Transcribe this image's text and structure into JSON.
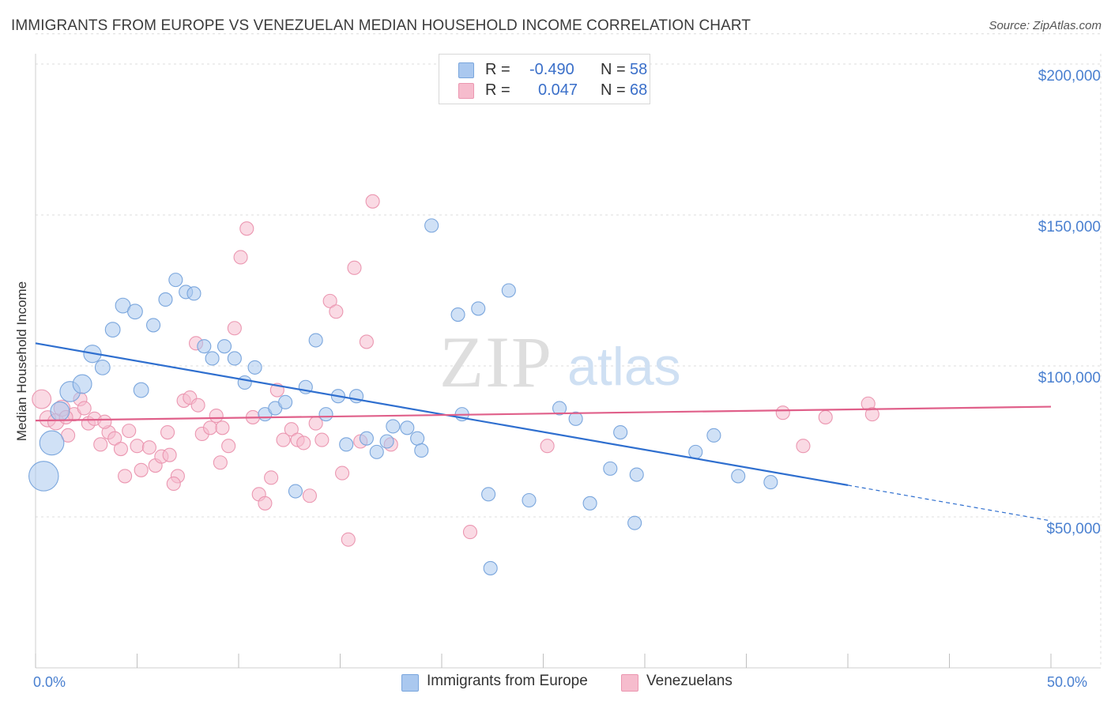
{
  "header": {
    "title": "IMMIGRANTS FROM EUROPE VS VENEZUELAN MEDIAN HOUSEHOLD INCOME CORRELATION CHART",
    "source": "Source: ZipAtlas.com"
  },
  "legend_top": {
    "rows": [
      {
        "r_label": "R =",
        "r_value": "-0.490",
        "n_label": "N =",
        "n_value": "58"
      },
      {
        "r_label": "R =",
        "r_value": "0.047",
        "n_label": "N =",
        "n_value": "68"
      }
    ]
  },
  "legend_bottom": {
    "items": [
      {
        "label": "Immigrants from Europe"
      },
      {
        "label": "Venezuelans"
      }
    ]
  },
  "watermark": {
    "zip": "ZIP",
    "atlas": "atlas"
  },
  "colors": {
    "blue_fill": "#aac8ef",
    "blue_stroke": "#7aa6dd",
    "blue_line": "#2f6fcf",
    "pink_fill": "#f6bccd",
    "pink_stroke": "#eb97b1",
    "pink_line": "#e0608a",
    "grid": "#dcdcdc",
    "axis_text": "#4a80d0"
  },
  "chart_data": {
    "type": "scatter",
    "title": "IMMIGRANTS FROM EUROPE VS VENEZUELAN MEDIAN HOUSEHOLD INCOME CORRELATION CHART",
    "xlabel": "",
    "ylabel": "Median Household Income",
    "xlim": [
      0,
      50
    ],
    "ylim": [
      0,
      210000
    ],
    "x_tick_labels": [
      "0.0%",
      "50.0%"
    ],
    "y_ticks": [
      50000,
      100000,
      150000,
      200000
    ],
    "y_tick_labels": [
      "$50,000",
      "$100,000",
      "$150,000",
      "$200,000"
    ],
    "grid": true,
    "legend_placement": "top-center",
    "series": [
      {
        "name": "Immigrants from Europe",
        "R": -0.49,
        "N": 58,
        "trend": {
          "x0": 0,
          "y0": 107500,
          "x1": 40,
          "y1": 60500,
          "dashed_to_x": 50,
          "dashed_to_y": 48700
        },
        "points": [
          {
            "x": 0.4,
            "y": 63500,
            "s": 2.2
          },
          {
            "x": 0.8,
            "y": 74500,
            "s": 1.8
          },
          {
            "x": 1.2,
            "y": 85000,
            "s": 1.4
          },
          {
            "x": 1.7,
            "y": 91500,
            "s": 1.5
          },
          {
            "x": 2.3,
            "y": 94000,
            "s": 1.4
          },
          {
            "x": 2.8,
            "y": 104000,
            "s": 1.3
          },
          {
            "x": 3.3,
            "y": 99500,
            "s": 1.1
          },
          {
            "x": 3.8,
            "y": 112000,
            "s": 1.1
          },
          {
            "x": 4.3,
            "y": 120000,
            "s": 1.1
          },
          {
            "x": 4.9,
            "y": 118000,
            "s": 1.1
          },
          {
            "x": 5.2,
            "y": 92000,
            "s": 1.1
          },
          {
            "x": 5.8,
            "y": 113500,
            "s": 1.0
          },
          {
            "x": 6.4,
            "y": 122000,
            "s": 1.0
          },
          {
            "x": 6.9,
            "y": 128500,
            "s": 1.0
          },
          {
            "x": 7.4,
            "y": 124500,
            "s": 1.0
          },
          {
            "x": 7.8,
            "y": 124000,
            "s": 1.0
          },
          {
            "x": 8.3,
            "y": 106500,
            "s": 1.0
          },
          {
            "x": 8.7,
            "y": 102500,
            "s": 1.0
          },
          {
            "x": 9.3,
            "y": 106500,
            "s": 1.0
          },
          {
            "x": 9.8,
            "y": 102500,
            "s": 1.0
          },
          {
            "x": 10.3,
            "y": 94500,
            "s": 1.0
          },
          {
            "x": 10.8,
            "y": 99500,
            "s": 1.0
          },
          {
            "x": 11.3,
            "y": 84000,
            "s": 1.0
          },
          {
            "x": 11.8,
            "y": 86000,
            "s": 1.0
          },
          {
            "x": 12.3,
            "y": 88000,
            "s": 1.0
          },
          {
            "x": 12.8,
            "y": 58500,
            "s": 1.0
          },
          {
            "x": 13.3,
            "y": 93000,
            "s": 1.0
          },
          {
            "x": 13.8,
            "y": 108500,
            "s": 1.0
          },
          {
            "x": 14.3,
            "y": 84000,
            "s": 1.0
          },
          {
            "x": 14.9,
            "y": 90000,
            "s": 1.0
          },
          {
            "x": 15.3,
            "y": 74000,
            "s": 1.0
          },
          {
            "x": 15.8,
            "y": 90000,
            "s": 1.0
          },
          {
            "x": 16.3,
            "y": 76000,
            "s": 1.0
          },
          {
            "x": 16.8,
            "y": 71500,
            "s": 1.0
          },
          {
            "x": 17.3,
            "y": 75000,
            "s": 1.0
          },
          {
            "x": 17.6,
            "y": 80000,
            "s": 1.0
          },
          {
            "x": 18.3,
            "y": 79500,
            "s": 1.0
          },
          {
            "x": 18.8,
            "y": 76000,
            "s": 1.0
          },
          {
            "x": 19.5,
            "y": 146500,
            "s": 1.0
          },
          {
            "x": 19.0,
            "y": 72000,
            "s": 1.0
          },
          {
            "x": 20.8,
            "y": 117000,
            "s": 1.0
          },
          {
            "x": 21.0,
            "y": 84000,
            "s": 1.0
          },
          {
            "x": 21.8,
            "y": 119000,
            "s": 1.0
          },
          {
            "x": 22.3,
            "y": 57500,
            "s": 1.0
          },
          {
            "x": 22.4,
            "y": 33000,
            "s": 1.0
          },
          {
            "x": 23.3,
            "y": 125000,
            "s": 1.0
          },
          {
            "x": 24.3,
            "y": 55500,
            "s": 1.0
          },
          {
            "x": 25.8,
            "y": 86000,
            "s": 1.0
          },
          {
            "x": 26.6,
            "y": 82500,
            "s": 1.0
          },
          {
            "x": 27.3,
            "y": 54500,
            "s": 1.0
          },
          {
            "x": 28.3,
            "y": 66000,
            "s": 1.0
          },
          {
            "x": 28.8,
            "y": 78000,
            "s": 1.0
          },
          {
            "x": 29.6,
            "y": 64000,
            "s": 1.0
          },
          {
            "x": 29.5,
            "y": 48000,
            "s": 1.0
          },
          {
            "x": 32.5,
            "y": 71500,
            "s": 1.0
          },
          {
            "x": 33.4,
            "y": 77000,
            "s": 1.0
          },
          {
            "x": 34.6,
            "y": 63500,
            "s": 1.0
          },
          {
            "x": 36.2,
            "y": 61500,
            "s": 1.0
          }
        ]
      },
      {
        "name": "Venezuelans",
        "R": 0.047,
        "N": 68,
        "trend": {
          "x0": 0,
          "y0": 81900,
          "x1": 50,
          "y1": 86500
        },
        "points": [
          {
            "x": 0.3,
            "y": 89000,
            "s": 1.4
          },
          {
            "x": 0.6,
            "y": 82500,
            "s": 1.2
          },
          {
            "x": 1.0,
            "y": 81500,
            "s": 1.2
          },
          {
            "x": 1.3,
            "y": 86000,
            "s": 1.2
          },
          {
            "x": 1.6,
            "y": 77000,
            "s": 1.0
          },
          {
            "x": 1.9,
            "y": 84000,
            "s": 1.0
          },
          {
            "x": 2.2,
            "y": 89000,
            "s": 1.0
          },
          {
            "x": 2.6,
            "y": 81000,
            "s": 1.0
          },
          {
            "x": 2.9,
            "y": 82500,
            "s": 1.0
          },
          {
            "x": 3.2,
            "y": 74000,
            "s": 1.0
          },
          {
            "x": 3.6,
            "y": 78000,
            "s": 1.0
          },
          {
            "x": 3.9,
            "y": 76000,
            "s": 1.0
          },
          {
            "x": 4.2,
            "y": 72500,
            "s": 1.0
          },
          {
            "x": 4.6,
            "y": 78500,
            "s": 1.0
          },
          {
            "x": 5.0,
            "y": 73500,
            "s": 1.0
          },
          {
            "x": 5.2,
            "y": 65500,
            "s": 1.0
          },
          {
            "x": 5.6,
            "y": 73000,
            "s": 1.0
          },
          {
            "x": 5.9,
            "y": 67000,
            "s": 1.0
          },
          {
            "x": 6.2,
            "y": 70000,
            "s": 1.0
          },
          {
            "x": 6.6,
            "y": 70500,
            "s": 1.0
          },
          {
            "x": 7.0,
            "y": 63500,
            "s": 1.0
          },
          {
            "x": 7.3,
            "y": 88500,
            "s": 1.0
          },
          {
            "x": 7.6,
            "y": 89500,
            "s": 1.0
          },
          {
            "x": 7.9,
            "y": 107500,
            "s": 1.0
          },
          {
            "x": 8.2,
            "y": 77500,
            "s": 1.0
          },
          {
            "x": 8.6,
            "y": 79500,
            "s": 1.0
          },
          {
            "x": 8.9,
            "y": 83500,
            "s": 1.0
          },
          {
            "x": 9.2,
            "y": 79500,
            "s": 1.0
          },
          {
            "x": 9.5,
            "y": 73500,
            "s": 1.0
          },
          {
            "x": 9.8,
            "y": 112500,
            "s": 1.0
          },
          {
            "x": 10.1,
            "y": 136000,
            "s": 1.0
          },
          {
            "x": 10.4,
            "y": 145500,
            "s": 1.0
          },
          {
            "x": 10.7,
            "y": 83000,
            "s": 1.0
          },
          {
            "x": 11.0,
            "y": 57500,
            "s": 1.0
          },
          {
            "x": 11.3,
            "y": 54500,
            "s": 1.0
          },
          {
            "x": 11.6,
            "y": 63000,
            "s": 1.0
          },
          {
            "x": 11.9,
            "y": 92000,
            "s": 1.0
          },
          {
            "x": 12.2,
            "y": 75500,
            "s": 1.0
          },
          {
            "x": 12.6,
            "y": 79000,
            "s": 1.0
          },
          {
            "x": 12.9,
            "y": 75500,
            "s": 1.0
          },
          {
            "x": 13.2,
            "y": 74500,
            "s": 1.0
          },
          {
            "x": 13.5,
            "y": 57000,
            "s": 1.0
          },
          {
            "x": 13.8,
            "y": 81000,
            "s": 1.0
          },
          {
            "x": 14.1,
            "y": 75500,
            "s": 1.0
          },
          {
            "x": 14.5,
            "y": 121500,
            "s": 1.0
          },
          {
            "x": 14.8,
            "y": 118000,
            "s": 1.0
          },
          {
            "x": 15.1,
            "y": 64500,
            "s": 1.0
          },
          {
            "x": 15.4,
            "y": 42500,
            "s": 1.0
          },
          {
            "x": 15.7,
            "y": 132500,
            "s": 1.0
          },
          {
            "x": 16.0,
            "y": 75000,
            "s": 1.0
          },
          {
            "x": 16.3,
            "y": 108000,
            "s": 1.0
          },
          {
            "x": 16.6,
            "y": 154500,
            "s": 1.0
          },
          {
            "x": 6.8,
            "y": 61000,
            "s": 1.0
          },
          {
            "x": 6.5,
            "y": 78000,
            "s": 1.0
          },
          {
            "x": 4.4,
            "y": 63500,
            "s": 1.0
          },
          {
            "x": 3.4,
            "y": 81500,
            "s": 1.0
          },
          {
            "x": 2.4,
            "y": 86000,
            "s": 1.0
          },
          {
            "x": 1.5,
            "y": 83000,
            "s": 1.0
          },
          {
            "x": 21.4,
            "y": 45000,
            "s": 1.0
          },
          {
            "x": 25.2,
            "y": 73500,
            "s": 1.0
          },
          {
            "x": 36.8,
            "y": 84500,
            "s": 1.0
          },
          {
            "x": 37.8,
            "y": 73500,
            "s": 1.0
          },
          {
            "x": 38.9,
            "y": 83000,
            "s": 1.0
          },
          {
            "x": 41.0,
            "y": 87500,
            "s": 1.0
          },
          {
            "x": 41.2,
            "y": 84000,
            "s": 1.0
          },
          {
            "x": 17.5,
            "y": 74000,
            "s": 1.0
          },
          {
            "x": 9.1,
            "y": 68000,
            "s": 1.0
          },
          {
            "x": 8.0,
            "y": 87000,
            "s": 1.0
          }
        ]
      }
    ]
  }
}
